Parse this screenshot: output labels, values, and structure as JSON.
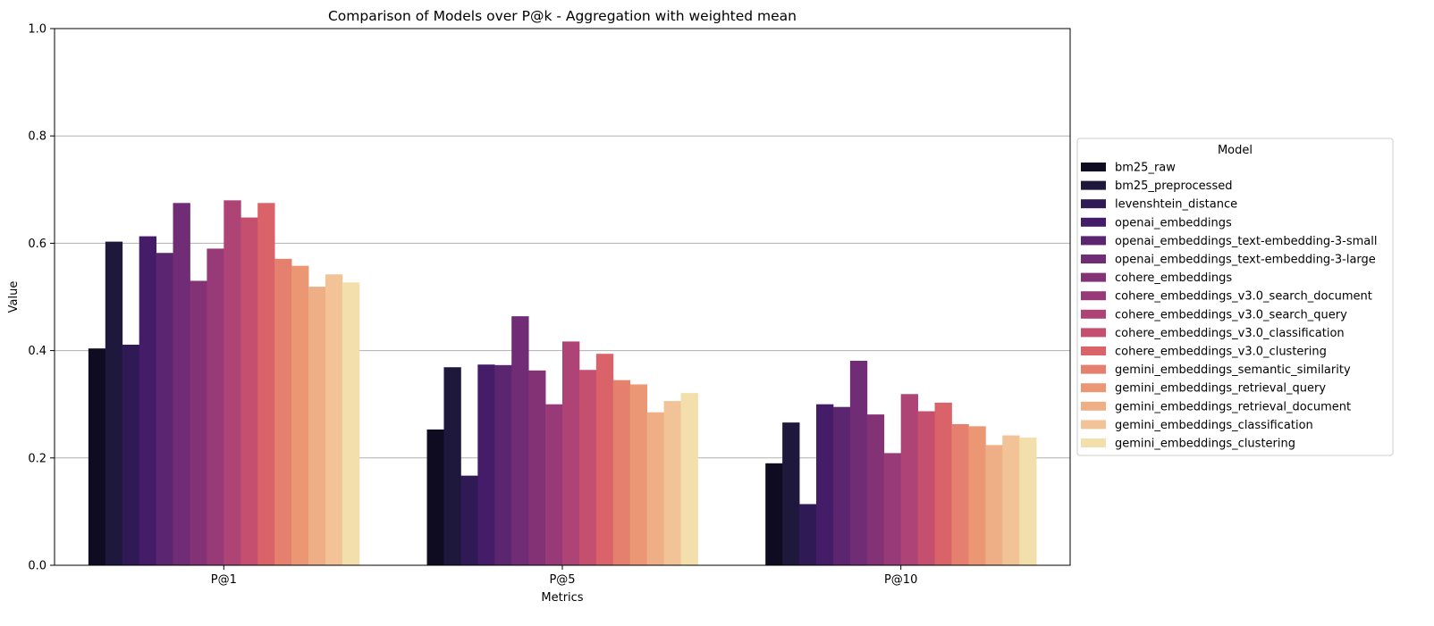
{
  "chart_data": {
    "type": "bar",
    "title": "Comparison of Models over P@k - Aggregation with weighted mean",
    "xlabel": "Metrics",
    "ylabel": "Value",
    "ylim": [
      0,
      1
    ],
    "yticks": [
      "0.0",
      "0.2",
      "0.4",
      "0.6",
      "0.8",
      "1.0"
    ],
    "grid": "horizontal",
    "legend": {
      "title": "Model",
      "placement": "right"
    },
    "categories": [
      "P@1",
      "P@5",
      "P@10"
    ],
    "series": [
      {
        "name": "bm25_raw",
        "color": "#0f0c21",
        "values": [
          0.404,
          0.253,
          0.19
        ]
      },
      {
        "name": "bm25_preprocessed",
        "color": "#1e183d",
        "values": [
          0.603,
          0.369,
          0.266
        ]
      },
      {
        "name": "levenshtein_distance",
        "color": "#2f1a55",
        "values": [
          0.411,
          0.167,
          0.114
        ]
      },
      {
        "name": "openai_embeddings",
        "color": "#451c68",
        "values": [
          0.613,
          0.374,
          0.3
        ]
      },
      {
        "name": "openai_embeddings_text-embedding-3-small",
        "color": "#5c2570",
        "values": [
          0.582,
          0.373,
          0.295
        ]
      },
      {
        "name": "openai_embeddings_text-embedding-3-large",
        "color": "#702c74",
        "values": [
          0.675,
          0.464,
          0.381
        ]
      },
      {
        "name": "cohere_embeddings",
        "color": "#843276",
        "values": [
          0.53,
          0.363,
          0.281
        ]
      },
      {
        "name": "cohere_embeddings_v3.0_search_document",
        "color": "#983a77",
        "values": [
          0.59,
          0.3,
          0.209
        ]
      },
      {
        "name": "cohere_embeddings_v3.0_search_query",
        "color": "#ad4475",
        "values": [
          0.68,
          0.417,
          0.319
        ]
      },
      {
        "name": "cohere_embeddings_v3.0_classification",
        "color": "#c44f6f",
        "values": [
          0.648,
          0.364,
          0.287
        ]
      },
      {
        "name": "cohere_embeddings_v3.0_clustering",
        "color": "#da636a",
        "values": [
          0.675,
          0.394,
          0.303
        ]
      },
      {
        "name": "gemini_embeddings_semantic_similarity",
        "color": "#e5806e",
        "values": [
          0.571,
          0.345,
          0.263
        ]
      },
      {
        "name": "gemini_embeddings_retrieval_query",
        "color": "#eb9773",
        "values": [
          0.558,
          0.337,
          0.259
        ]
      },
      {
        "name": "gemini_embeddings_retrieval_document",
        "color": "#eeae86",
        "values": [
          0.519,
          0.285,
          0.224
        ]
      },
      {
        "name": "gemini_embeddings_classification",
        "color": "#f1c396",
        "values": [
          0.542,
          0.306,
          0.242
        ]
      },
      {
        "name": "gemini_embeddings_clustering",
        "color": "#f3dfab",
        "values": [
          0.527,
          0.321,
          0.238
        ]
      }
    ]
  }
}
